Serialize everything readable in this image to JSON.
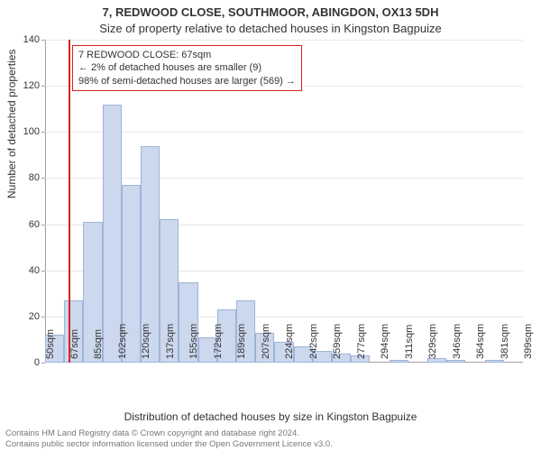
{
  "header": {
    "address": "7, REDWOOD CLOSE, SOUTHMOOR, ABINGDON, OX13 5DH",
    "subtitle": "Size of property relative to detached houses in Kingston Bagpuize"
  },
  "ylabel": "Number of detached properties",
  "xlabel": "Distribution of detached houses by size in Kingston Bagpuize",
  "chart": {
    "type": "histogram",
    "background_color": "#ffffff",
    "bar_fill": "#ccd8ed",
    "bar_border": "#9fb4d8",
    "grid_color": "#e7e7e7",
    "axis_color": "#a0a0a0",
    "ylim": [
      0,
      140
    ],
    "yticks": [
      0,
      20,
      40,
      60,
      80,
      100,
      120,
      140
    ],
    "xtick_labels": [
      "50sqm",
      "67sqm",
      "85sqm",
      "102sqm",
      "120sqm",
      "137sqm",
      "155sqm",
      "172sqm",
      "189sqm",
      "207sqm",
      "224sqm",
      "242sqm",
      "259sqm",
      "277sqm",
      "294sqm",
      "311sqm",
      "329sqm",
      "346sqm",
      "364sqm",
      "381sqm",
      "399sqm"
    ],
    "values": [
      12,
      27,
      61,
      112,
      77,
      94,
      62,
      35,
      11,
      23,
      27,
      13,
      9,
      7,
      5,
      4,
      3,
      0,
      1,
      0,
      2,
      1,
      0,
      1,
      0
    ],
    "marker": {
      "color": "#dd2222",
      "position_sqm": 67,
      "annotation_lines": [
        "7 REDWOOD CLOSE: 67sqm",
        "← 2% of detached houses are smaller (9)",
        "98% of semi-detached houses are larger (569) →"
      ]
    },
    "title_fontsize": 13,
    "label_fontsize": 12,
    "tick_fontsize": 11
  },
  "footer": {
    "line1": "Contains HM Land Registry data © Crown copyright and database right 2024.",
    "line2": "Contains public sector information licensed under the Open Government Licence v3.0."
  }
}
